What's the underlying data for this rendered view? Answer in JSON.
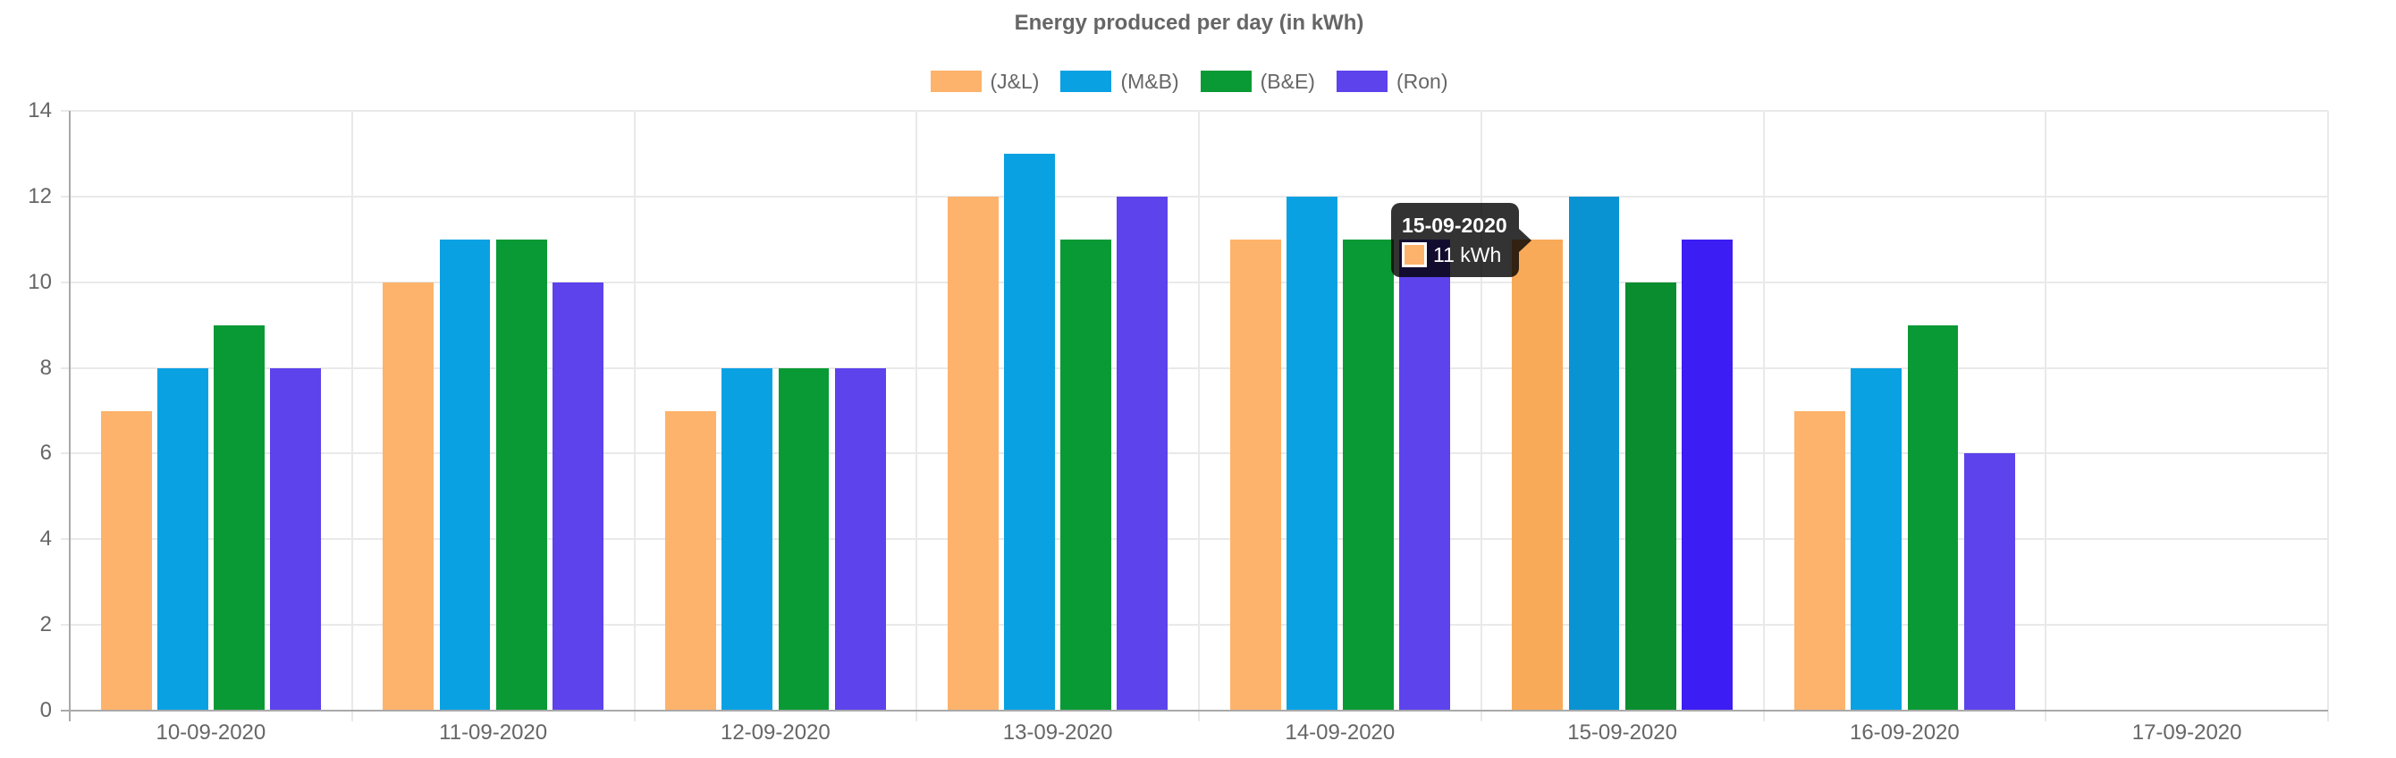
{
  "chart_data": {
    "type": "bar",
    "title": "Energy produced per day (in kWh)",
    "categories": [
      "10-09-2020",
      "11-09-2020",
      "12-09-2020",
      "13-09-2020",
      "14-09-2020",
      "15-09-2020",
      "16-09-2020",
      "17-09-2020"
    ],
    "series": [
      {
        "name": "(J&L)",
        "color": "#FDB36B",
        "hover_color": "#F9AA58",
        "values": [
          7,
          10,
          7,
          12,
          11,
          11,
          7,
          null
        ]
      },
      {
        "name": "(M&B)",
        "color": "#0AA1E2",
        "hover_color": "#0A93D2",
        "values": [
          8,
          11,
          8,
          13,
          12,
          12,
          8,
          null
        ]
      },
      {
        "name": "(B&E)",
        "color": "#0A9A35",
        "hover_color": "#0A8D2F",
        "values": [
          9,
          11,
          8,
          11,
          11,
          10,
          9,
          null
        ]
      },
      {
        "name": "(Ron)",
        "color": "#5C43EC",
        "hover_color": "#3C1DF3",
        "values": [
          8,
          10,
          8,
          12,
          11,
          11,
          6,
          null
        ]
      }
    ],
    "y_axis": {
      "min": 0,
      "max": 14,
      "step": 2,
      "tick_labels": [
        "0",
        "2",
        "4",
        "6",
        "8",
        "10",
        "12",
        "14"
      ]
    },
    "x_axis": {
      "tick_labels": [
        "10-09-2020",
        "11-09-2020",
        "12-09-2020",
        "13-09-2020",
        "14-09-2020",
        "15-09-2020",
        "16-09-2020",
        "17-09-2020"
      ]
    },
    "hovered_category_index": 5,
    "legend_position": "top",
    "grid": true
  },
  "tooltip": {
    "title": "15-09-2020",
    "series": "(J&L)",
    "value_label": "11 kWh",
    "swatch_color": "#FDB36B"
  },
  "ui_colors": {
    "title_text": "#666666",
    "axis_text": "#666666",
    "gridline": "#e9e9e9",
    "axis_line": "#a9a9a9",
    "tooltip_bg": "rgba(0,0,0,0.8)"
  }
}
